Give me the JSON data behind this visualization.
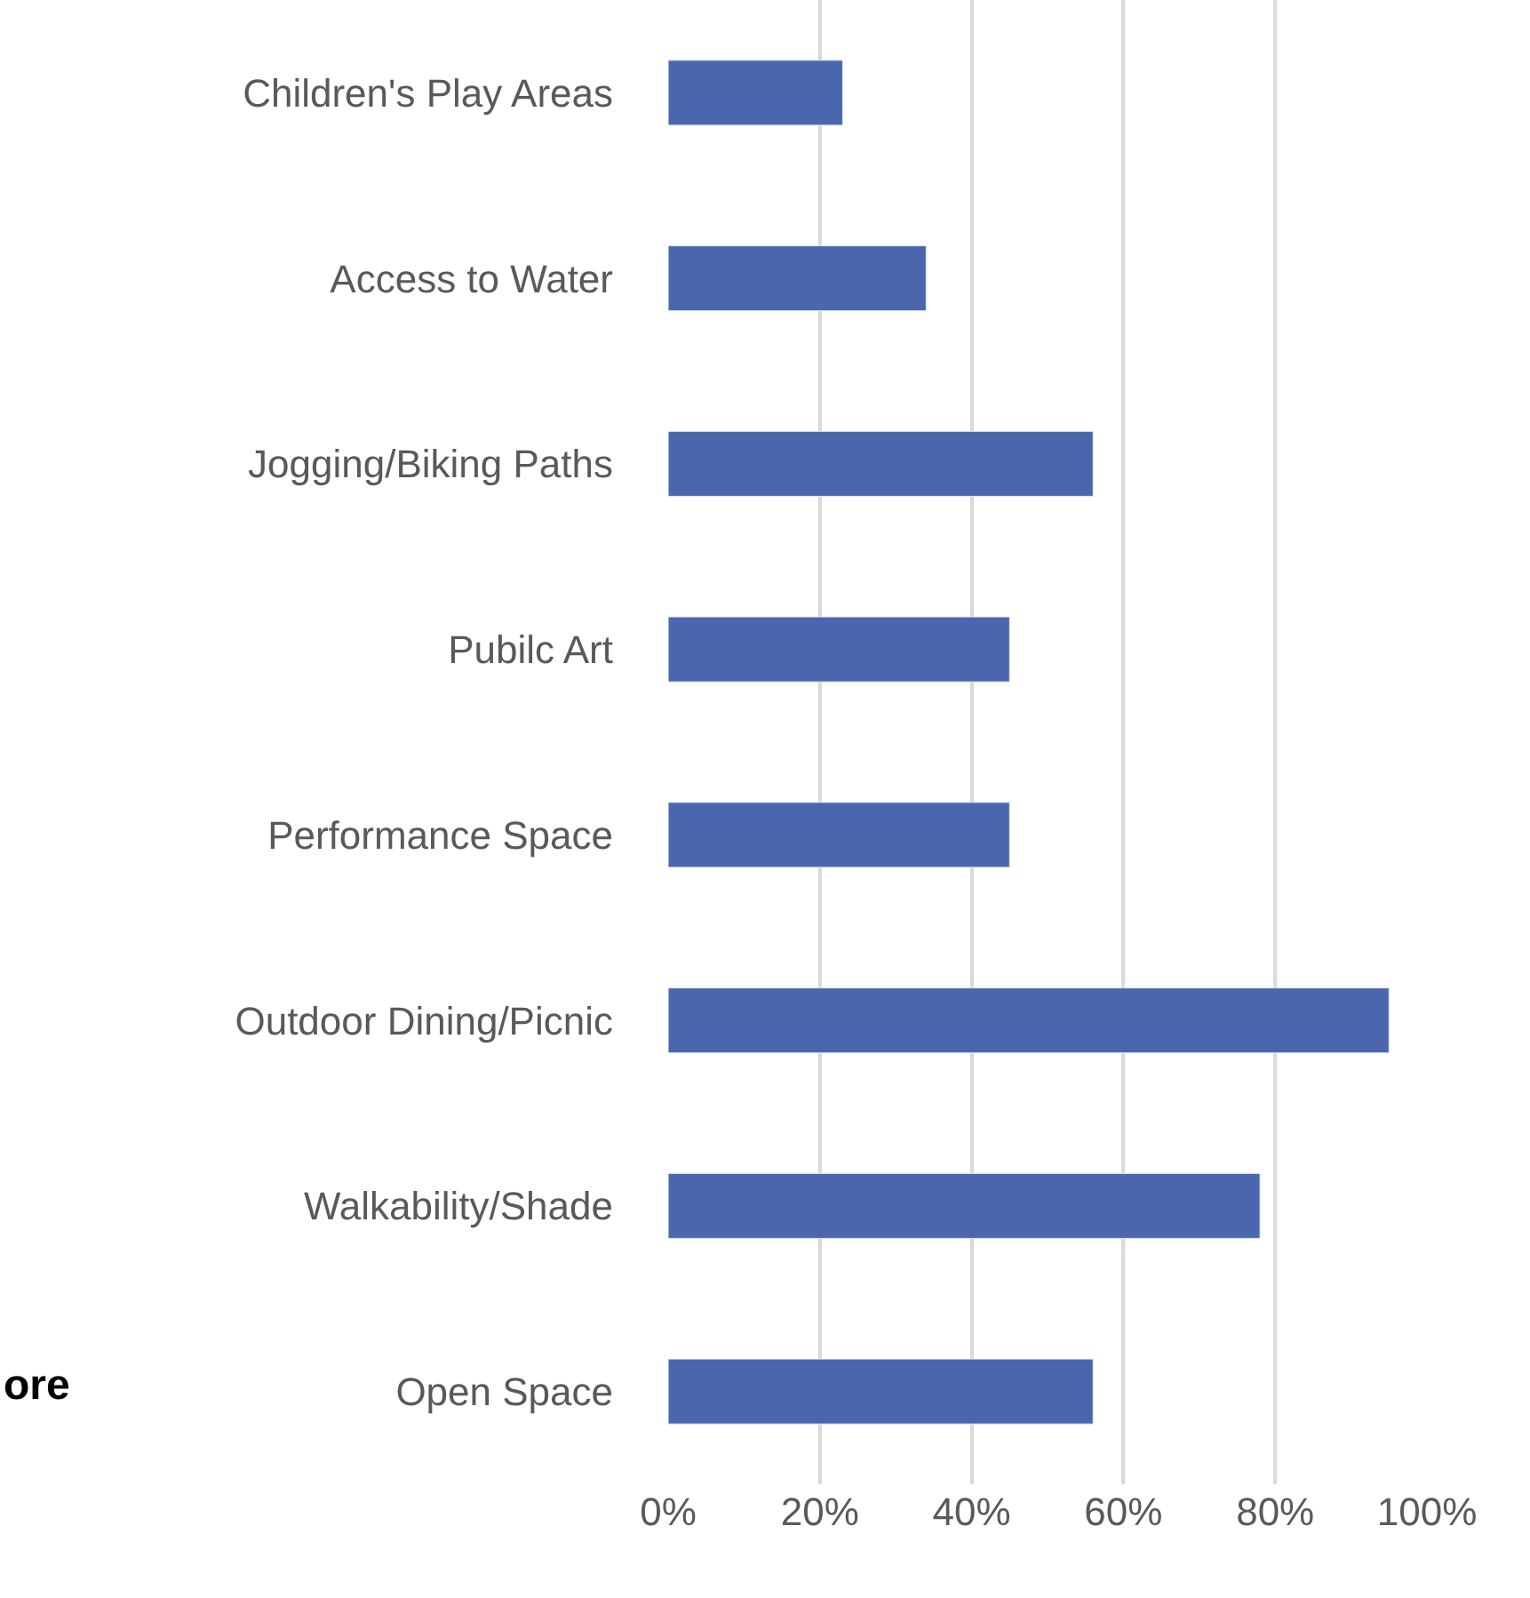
{
  "chart_data": {
    "type": "bar",
    "orientation": "horizontal",
    "categories": [
      "Children's Play Areas",
      "Access to Water",
      "Jogging/Biking Paths",
      "Pubilc Art",
      "Performance Space",
      "Outdoor Dining/Picnic",
      "Walkability/Shade",
      "Open Space"
    ],
    "values": [
      23,
      34,
      56,
      45,
      45,
      95,
      78,
      56
    ],
    "color": "#4a67ae",
    "xlim": [
      0,
      100
    ],
    "xticks": [
      {
        "value": 0,
        "label": "0%"
      },
      {
        "value": 20,
        "label": "20%"
      },
      {
        "value": 40,
        "label": "40%"
      },
      {
        "value": 60,
        "label": "60%"
      },
      {
        "value": 80,
        "label": "80%"
      },
      {
        "value": 100,
        "label": "100%"
      }
    ],
    "grid": "x",
    "legend": false,
    "annotations": [
      "ore"
    ]
  }
}
